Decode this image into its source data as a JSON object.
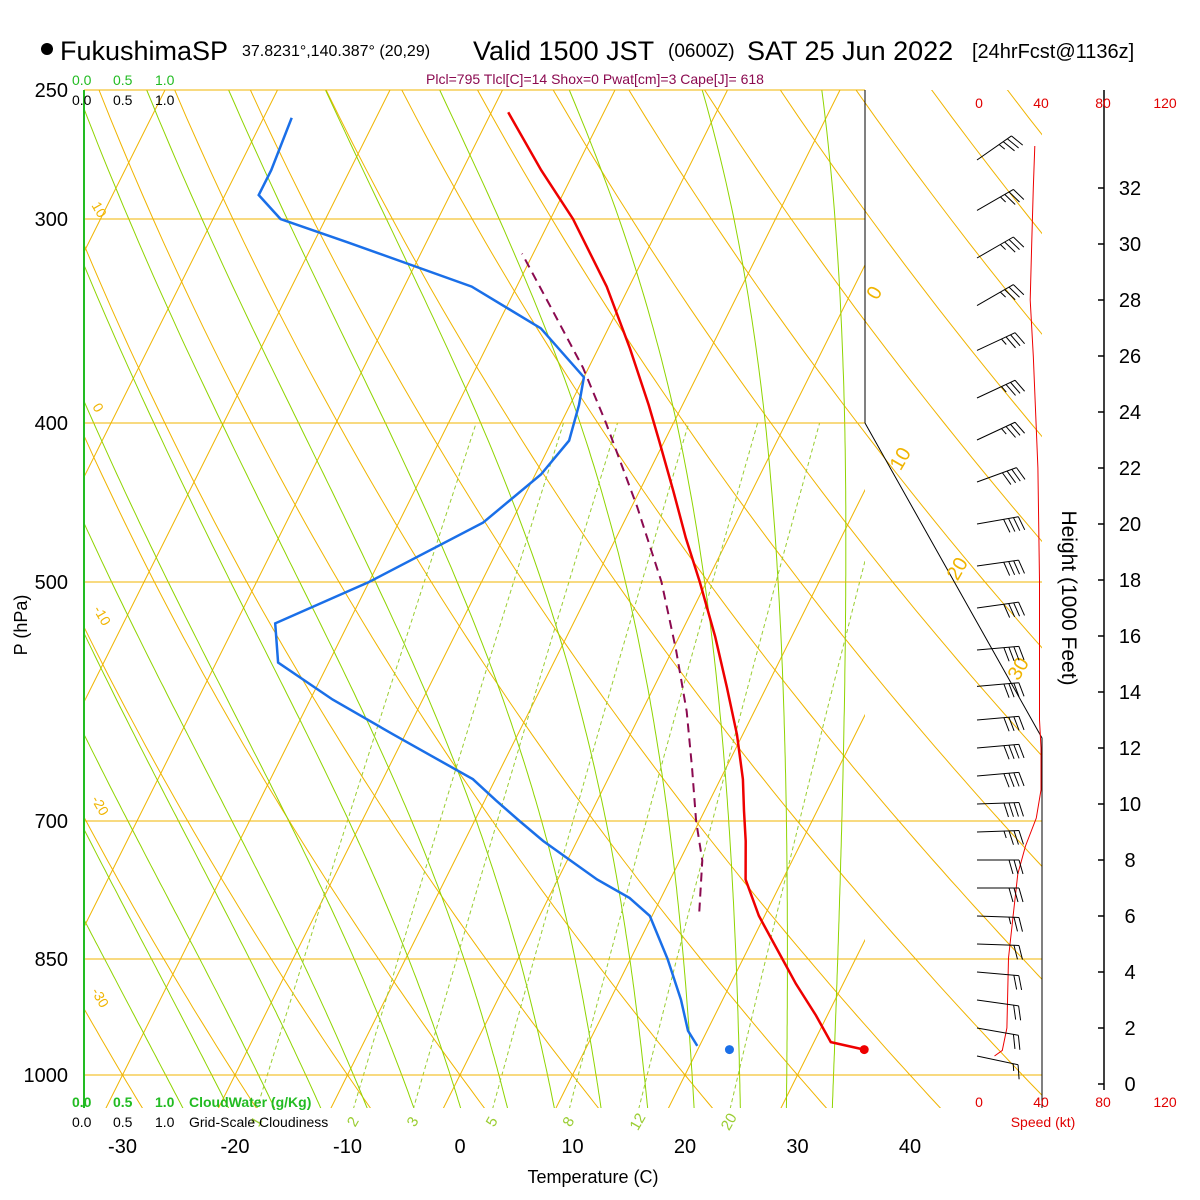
{
  "header": {
    "station": "FukushimaSP",
    "coords": "37.8231°,140.387° (20,29)",
    "valid_main": "Valid 1500 JST",
    "valid_z": "(0600Z)",
    "valid_date": "SAT 25 Jun 2022",
    "forecast": "[24hrFcst@1136z]",
    "params": "Plcl=795 Tlcl[C]=14 Shox=0 Pwat[cm]=3 Cape[J]= 618"
  },
  "legend": {
    "cloud_ticks": [
      "0.0",
      "0.5",
      "1.0"
    ],
    "cloudwater_label": "CloudWater (g/Kg)",
    "cloudiness_label": "Grid-Scale Cloudiness",
    "speed_label": "Speed (kt)",
    "speed_ticks": [
      "0",
      "40",
      "80",
      "120"
    ]
  },
  "colors": {
    "temperature": "#ee0000",
    "dewpoint": "#1a6fe8",
    "parcel": "#8b0a50",
    "isotherm": "#f0b400",
    "dry_adiabat": "#f0b400",
    "moist_adiabat": "#8fd400",
    "mixing_ratio": "#9acd32",
    "cloud": "#22bb22",
    "wind_speed": "#ee0000"
  },
  "chart_data": {
    "type": "skew-t",
    "xlabel": "Temperature (C)",
    "ylabel": "P (hPa)",
    "y2label": "Height (1000 Feet)",
    "pressure_ticks": [
      250,
      300,
      400,
      500,
      700,
      850,
      1000
    ],
    "temperature_ticks": [
      -30,
      -20,
      -10,
      0,
      10,
      20,
      30,
      40
    ],
    "height_ticks": [
      0,
      2,
      4,
      6,
      8,
      10,
      12,
      14,
      16,
      18,
      20,
      22,
      24,
      26,
      28,
      30,
      32
    ],
    "isotherm_labels": [
      "10",
      "0",
      "-10",
      "-20",
      "-30",
      "0",
      "10",
      "20",
      "30"
    ],
    "mixing_ratio_labels": [
      "1",
      "2",
      "3",
      "5",
      "8",
      "12",
      "20"
    ],
    "temperature_profile": [
      {
        "p": 965,
        "t": 34.8
      },
      {
        "p": 955,
        "t": 31.5
      },
      {
        "p": 920,
        "t": 29.0
      },
      {
        "p": 880,
        "t": 25.8
      },
      {
        "p": 850,
        "t": 23.5
      },
      {
        "p": 800,
        "t": 19.5
      },
      {
        "p": 760,
        "t": 16.7
      },
      {
        "p": 720,
        "t": 15.0
      },
      {
        "p": 690,
        "t": 13.5
      },
      {
        "p": 660,
        "t": 12.0
      },
      {
        "p": 620,
        "t": 9.5
      },
      {
        "p": 580,
        "t": 6.5
      },
      {
        "p": 540,
        "t": 3.2
      },
      {
        "p": 500,
        "t": -0.6
      },
      {
        "p": 470,
        "t": -3.8
      },
      {
        "p": 440,
        "t": -7.0
      },
      {
        "p": 410,
        "t": -10.5
      },
      {
        "p": 390,
        "t": -13.0
      },
      {
        "p": 360,
        "t": -17.2
      },
      {
        "p": 330,
        "t": -22.0
      },
      {
        "p": 300,
        "t": -28.0
      },
      {
        "p": 280,
        "t": -33.0
      },
      {
        "p": 258,
        "t": -38.5
      }
    ],
    "dewpoint_profile": [
      {
        "p": 960,
        "t": 19.8
      },
      {
        "p": 940,
        "t": 18.3
      },
      {
        "p": 900,
        "t": 16.3
      },
      {
        "p": 850,
        "t": 13.3
      },
      {
        "p": 800,
        "t": 9.8
      },
      {
        "p": 780,
        "t": 7.2
      },
      {
        "p": 760,
        "t": 3.5
      },
      {
        "p": 720,
        "t": -3.0
      },
      {
        "p": 700,
        "t": -6.0
      },
      {
        "p": 680,
        "t": -9.0
      },
      {
        "p": 660,
        "t": -12.0
      },
      {
        "p": 620,
        "t": -21.0
      },
      {
        "p": 590,
        "t": -28.0
      },
      {
        "p": 560,
        "t": -34.5
      },
      {
        "p": 530,
        "t": -36.5
      },
      {
        "p": 500,
        "t": -30.0
      },
      {
        "p": 460,
        "t": -22.5
      },
      {
        "p": 430,
        "t": -19.5
      },
      {
        "p": 410,
        "t": -18.5
      },
      {
        "p": 390,
        "t": -19.2
      },
      {
        "p": 375,
        "t": -20.0
      },
      {
        "p": 350,
        "t": -26.0
      },
      {
        "p": 330,
        "t": -34.0
      },
      {
        "p": 310,
        "t": -47.0
      },
      {
        "p": 300,
        "t": -54.0
      },
      {
        "p": 290,
        "t": -57.0
      },
      {
        "p": 280,
        "t": -57.0
      },
      {
        "p": 260,
        "t": -57.5
      }
    ],
    "parcel_profile": [
      {
        "p": 795,
        "t": 14.0
      },
      {
        "p": 740,
        "t": 12.0
      },
      {
        "p": 700,
        "t": 9.7
      },
      {
        "p": 650,
        "t": 7.0
      },
      {
        "p": 600,
        "t": 4.0
      },
      {
        "p": 550,
        "t": 0.3
      },
      {
        "p": 500,
        "t": -4.0
      },
      {
        "p": 450,
        "t": -9.5
      },
      {
        "p": 400,
        "t": -16.0
      },
      {
        "p": 370,
        "t": -20.5
      },
      {
        "p": 340,
        "t": -26.0
      },
      {
        "p": 315,
        "t": -31.0
      }
    ],
    "surface_temperature": {
      "p": 965,
      "t": 34.8
    },
    "surface_dewpoint": {
      "p": 965,
      "t": 19.8
    },
    "wind_speed_profile": [
      {
        "h": 1.0,
        "kt": 10
      },
      {
        "h": 1.2,
        "kt": 15
      },
      {
        "h": 2.0,
        "kt": 18
      },
      {
        "h": 4.5,
        "kt": 19
      },
      {
        "h": 6.0,
        "kt": 22
      },
      {
        "h": 7.5,
        "kt": 25
      },
      {
        "h": 8.5,
        "kt": 30
      },
      {
        "h": 9.5,
        "kt": 37
      },
      {
        "h": 10.5,
        "kt": 40
      },
      {
        "h": 12.0,
        "kt": 40
      },
      {
        "h": 13.0,
        "kt": 39
      },
      {
        "h": 15.0,
        "kt": 39
      },
      {
        "h": 18.0,
        "kt": 39
      },
      {
        "h": 22.0,
        "kt": 38
      },
      {
        "h": 26.0,
        "kt": 35
      },
      {
        "h": 28.0,
        "kt": 33
      },
      {
        "h": 30.0,
        "kt": 34
      },
      {
        "h": 32.0,
        "kt": 35
      },
      {
        "h": 33.5,
        "kt": 36
      }
    ],
    "wind_barbs": [
      {
        "h": 33.0,
        "dir": 235,
        "kt": 35
      },
      {
        "h": 31.2,
        "dir": 240,
        "kt": 35
      },
      {
        "h": 29.5,
        "dir": 240,
        "kt": 35
      },
      {
        "h": 27.8,
        "dir": 240,
        "kt": 35
      },
      {
        "h": 26.2,
        "dir": 245,
        "kt": 35
      },
      {
        "h": 24.5,
        "dir": 245,
        "kt": 35
      },
      {
        "h": 23.0,
        "dir": 245,
        "kt": 35
      },
      {
        "h": 21.5,
        "dir": 250,
        "kt": 38
      },
      {
        "h": 20.0,
        "dir": 260,
        "kt": 40
      },
      {
        "h": 18.5,
        "dir": 262,
        "kt": 40
      },
      {
        "h": 17.0,
        "dir": 262,
        "kt": 40
      },
      {
        "h": 15.5,
        "dir": 265,
        "kt": 40
      },
      {
        "h": 14.2,
        "dir": 265,
        "kt": 40
      },
      {
        "h": 13.0,
        "dir": 265,
        "kt": 40
      },
      {
        "h": 12.0,
        "dir": 265,
        "kt": 40
      },
      {
        "h": 11.0,
        "dir": 265,
        "kt": 40
      },
      {
        "h": 10.0,
        "dir": 268,
        "kt": 38
      },
      {
        "h": 9.0,
        "dir": 268,
        "kt": 35
      },
      {
        "h": 8.0,
        "dir": 270,
        "kt": 30
      },
      {
        "h": 7.0,
        "dir": 270,
        "kt": 28
      },
      {
        "h": 6.0,
        "dir": 272,
        "kt": 25
      },
      {
        "h": 5.0,
        "dir": 272,
        "kt": 22
      },
      {
        "h": 4.0,
        "dir": 275,
        "kt": 20
      },
      {
        "h": 3.0,
        "dir": 278,
        "kt": 20
      },
      {
        "h": 2.0,
        "dir": 280,
        "kt": 18
      },
      {
        "h": 1.0,
        "dir": 282,
        "kt": 15
      }
    ]
  }
}
